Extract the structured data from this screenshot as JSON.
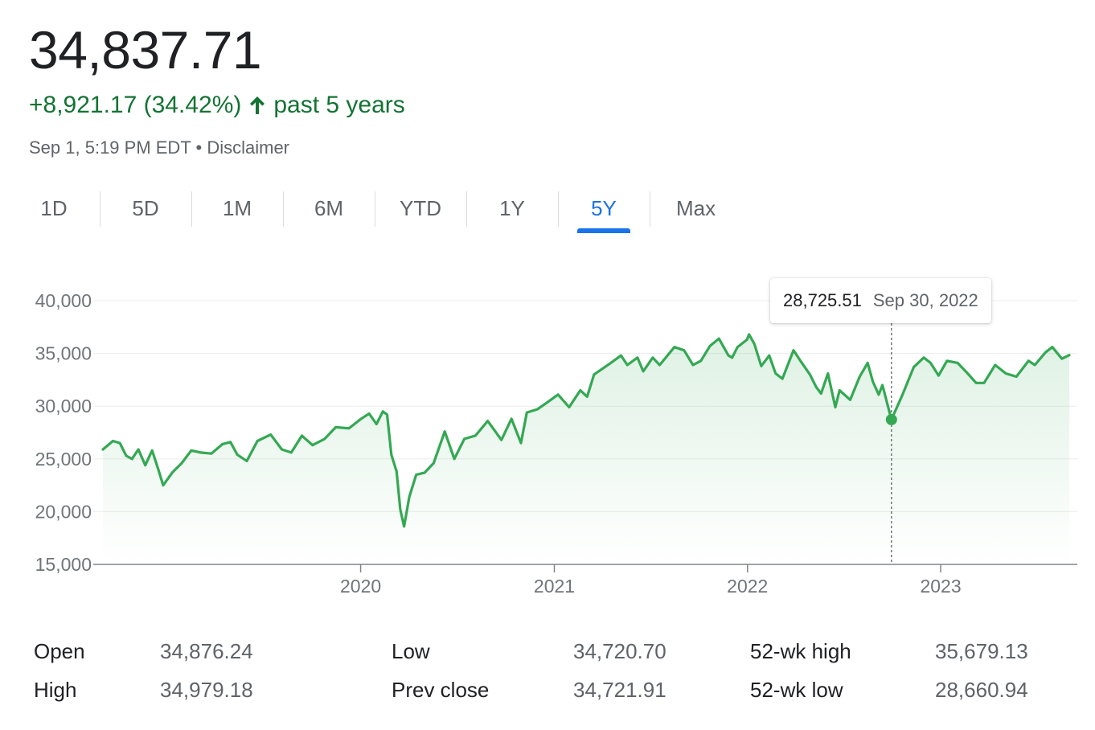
{
  "header": {
    "price": "34,837.71",
    "change": "+8,921.17 (34.42%)",
    "change_period": "past 5 years",
    "timestamp": "Sep 1, 5:19 PM EDT",
    "separator": "•",
    "disclaimer": "Disclaimer",
    "accent_color": "#137333"
  },
  "tabs": [
    {
      "label": "1D"
    },
    {
      "label": "5D"
    },
    {
      "label": "1M"
    },
    {
      "label": "6M"
    },
    {
      "label": "YTD"
    },
    {
      "label": "1Y"
    },
    {
      "label": "5Y",
      "active": true
    },
    {
      "label": "Max"
    }
  ],
  "tooltip": {
    "value": "28,725.51",
    "date": "Sep 30, 2022"
  },
  "chart_data": {
    "type": "area",
    "line_color": "#34a853",
    "y_ticks": [
      "40,000",
      "35,000",
      "30,000",
      "25,000",
      "20,000",
      "15,000"
    ],
    "x_ticks": [
      "2020",
      "2021",
      "2022",
      "2023"
    ],
    "ylim": [
      15000,
      40000
    ],
    "xlim": [
      "2018-09-01",
      "2023-09-01"
    ],
    "grid": true,
    "highlight": {
      "date": "2022-09-30",
      "value": 28725.51
    },
    "series": [
      {
        "points": [
          [
            "2018-09-01",
            25900
          ],
          [
            "2018-09-20",
            26700
          ],
          [
            "2018-10-03",
            26500
          ],
          [
            "2018-10-15",
            25300
          ],
          [
            "2018-10-26",
            25000
          ],
          [
            "2018-11-07",
            25900
          ],
          [
            "2018-11-20",
            24400
          ],
          [
            "2018-12-03",
            25800
          ],
          [
            "2018-12-14",
            24100
          ],
          [
            "2018-12-24",
            22500
          ],
          [
            "2019-01-10",
            23700
          ],
          [
            "2019-01-28",
            24600
          ],
          [
            "2019-02-15",
            25800
          ],
          [
            "2019-03-05",
            25600
          ],
          [
            "2019-03-25",
            25500
          ],
          [
            "2019-04-15",
            26400
          ],
          [
            "2019-04-30",
            26600
          ],
          [
            "2019-05-13",
            25400
          ],
          [
            "2019-05-31",
            24800
          ],
          [
            "2019-06-20",
            26700
          ],
          [
            "2019-07-15",
            27300
          ],
          [
            "2019-08-05",
            25900
          ],
          [
            "2019-08-23",
            25600
          ],
          [
            "2019-09-12",
            27200
          ],
          [
            "2019-10-02",
            26300
          ],
          [
            "2019-10-25",
            26900
          ],
          [
            "2019-11-15",
            28000
          ],
          [
            "2019-12-10",
            27900
          ],
          [
            "2020-01-02",
            28800
          ],
          [
            "2020-01-17",
            29300
          ],
          [
            "2020-01-31",
            28300
          ],
          [
            "2020-02-12",
            29500
          ],
          [
            "2020-02-20",
            29200
          ],
          [
            "2020-02-28",
            25400
          ],
          [
            "2020-03-09",
            23800
          ],
          [
            "2020-03-16",
            20200
          ],
          [
            "2020-03-23",
            18600
          ],
          [
            "2020-04-02",
            21400
          ],
          [
            "2020-04-15",
            23500
          ],
          [
            "2020-05-01",
            23700
          ],
          [
            "2020-05-18",
            24600
          ],
          [
            "2020-06-08",
            27600
          ],
          [
            "2020-06-26",
            25000
          ],
          [
            "2020-07-15",
            26900
          ],
          [
            "2020-08-05",
            27200
          ],
          [
            "2020-08-28",
            28600
          ],
          [
            "2020-09-23",
            26800
          ],
          [
            "2020-10-12",
            28800
          ],
          [
            "2020-10-30",
            26500
          ],
          [
            "2020-11-10",
            29400
          ],
          [
            "2020-11-30",
            29700
          ],
          [
            "2020-12-17",
            30300
          ],
          [
            "2021-01-08",
            31100
          ],
          [
            "2021-01-29",
            29900
          ],
          [
            "2021-02-19",
            31500
          ],
          [
            "2021-03-04",
            30900
          ],
          [
            "2021-03-17",
            33000
          ],
          [
            "2021-04-15",
            34000
          ],
          [
            "2021-05-07",
            34800
          ],
          [
            "2021-05-19",
            33900
          ],
          [
            "2021-06-07",
            34600
          ],
          [
            "2021-06-18",
            33300
          ],
          [
            "2021-07-06",
            34600
          ],
          [
            "2021-07-19",
            33900
          ],
          [
            "2021-08-16",
            35600
          ],
          [
            "2021-09-03",
            35300
          ],
          [
            "2021-09-20",
            33900
          ],
          [
            "2021-10-05",
            34300
          ],
          [
            "2021-10-22",
            35700
          ],
          [
            "2021-11-08",
            36400
          ],
          [
            "2021-11-26",
            34800
          ],
          [
            "2021-12-03",
            34600
          ],
          [
            "2021-12-13",
            35600
          ],
          [
            "2021-12-31",
            36300
          ],
          [
            "2022-01-04",
            36800
          ],
          [
            "2022-01-14",
            35900
          ],
          [
            "2022-01-27",
            33800
          ],
          [
            "2022-02-11",
            34800
          ],
          [
            "2022-02-23",
            33100
          ],
          [
            "2022-03-08",
            32600
          ],
          [
            "2022-03-29",
            35300
          ],
          [
            "2022-04-11",
            34300
          ],
          [
            "2022-04-29",
            33000
          ],
          [
            "2022-05-11",
            31800
          ],
          [
            "2022-05-20",
            31200
          ],
          [
            "2022-06-02",
            33100
          ],
          [
            "2022-06-16",
            29900
          ],
          [
            "2022-06-24",
            31500
          ],
          [
            "2022-07-14",
            30600
          ],
          [
            "2022-08-01",
            32800
          ],
          [
            "2022-08-16",
            34100
          ],
          [
            "2022-08-26",
            32300
          ],
          [
            "2022-09-06",
            31100
          ],
          [
            "2022-09-13",
            32000
          ],
          [
            "2022-09-30",
            28725
          ],
          [
            "2022-10-21",
            31100
          ],
          [
            "2022-11-11",
            33700
          ],
          [
            "2022-11-30",
            34600
          ],
          [
            "2022-12-13",
            34100
          ],
          [
            "2022-12-28",
            32900
          ],
          [
            "2023-01-13",
            34300
          ],
          [
            "2023-02-02",
            34100
          ],
          [
            "2023-02-21",
            33100
          ],
          [
            "2023-03-09",
            32200
          ],
          [
            "2023-03-24",
            32200
          ],
          [
            "2023-04-14",
            33900
          ],
          [
            "2023-05-04",
            33100
          ],
          [
            "2023-05-24",
            32800
          ],
          [
            "2023-06-16",
            34300
          ],
          [
            "2023-06-28",
            33900
          ],
          [
            "2023-07-18",
            35100
          ],
          [
            "2023-07-31",
            35600
          ],
          [
            "2023-08-18",
            34500
          ],
          [
            "2023-09-01",
            34838
          ]
        ]
      }
    ]
  }
}
